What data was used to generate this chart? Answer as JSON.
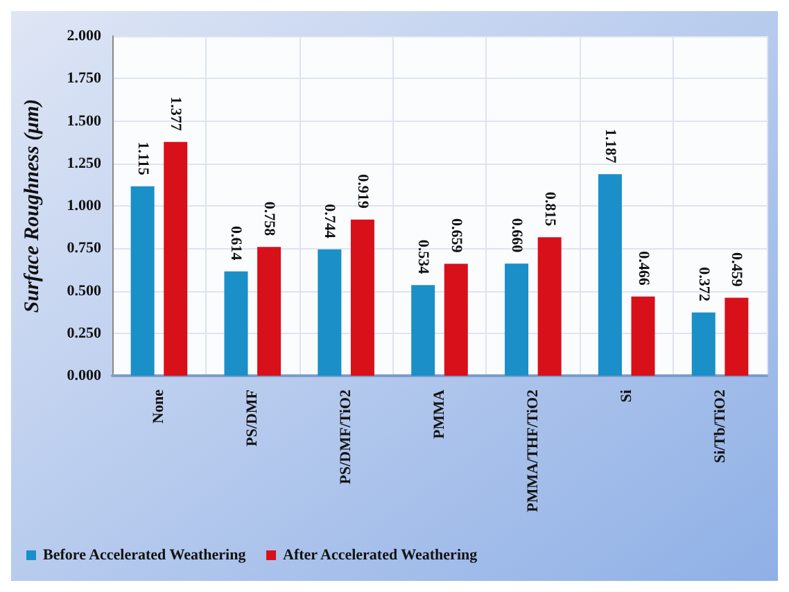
{
  "chart_data": {
    "type": "bar",
    "ylabel": "Surface Roughness (μm)",
    "categories": [
      "None",
      "PS/DMF",
      "PS/DMF/TiO2",
      "PMMA",
      "PMMA/THF/TiO2",
      "Si",
      "Si/Tb/TiO2"
    ],
    "series": [
      {
        "name": "Before Accelerated Weathering",
        "color": "#1a8fc8",
        "values": [
          1.115,
          0.614,
          0.744,
          0.534,
          0.66,
          1.187,
          0.372
        ],
        "value_labels": [
          "1.115",
          "0.614",
          "0.744",
          "0.534",
          "0.660",
          "1.187",
          "0.372"
        ]
      },
      {
        "name": "After Accelerated Weathering",
        "color": "#d8101a",
        "values": [
          1.377,
          0.758,
          0.919,
          0.659,
          0.815,
          0.466,
          0.459
        ],
        "value_labels": [
          "1.377",
          "0.758",
          "0.919",
          "0.659",
          "0.815",
          "0.466",
          "0.459"
        ]
      }
    ],
    "ylim": [
      0,
      2
    ],
    "yticks": [
      {
        "value": 0,
        "label": "0.000"
      },
      {
        "value": 0.25,
        "label": "0.250"
      },
      {
        "value": 0.5,
        "label": "0.500"
      },
      {
        "value": 0.75,
        "label": "0.750"
      },
      {
        "value": 1,
        "label": "1.000"
      },
      {
        "value": 1.25,
        "label": "1.250"
      },
      {
        "value": 1.5,
        "label": "1.500"
      },
      {
        "value": 1.75,
        "label": "1.750"
      },
      {
        "value": 2,
        "label": "2.000"
      }
    ],
    "grid": true,
    "legend": "bottom left"
  }
}
